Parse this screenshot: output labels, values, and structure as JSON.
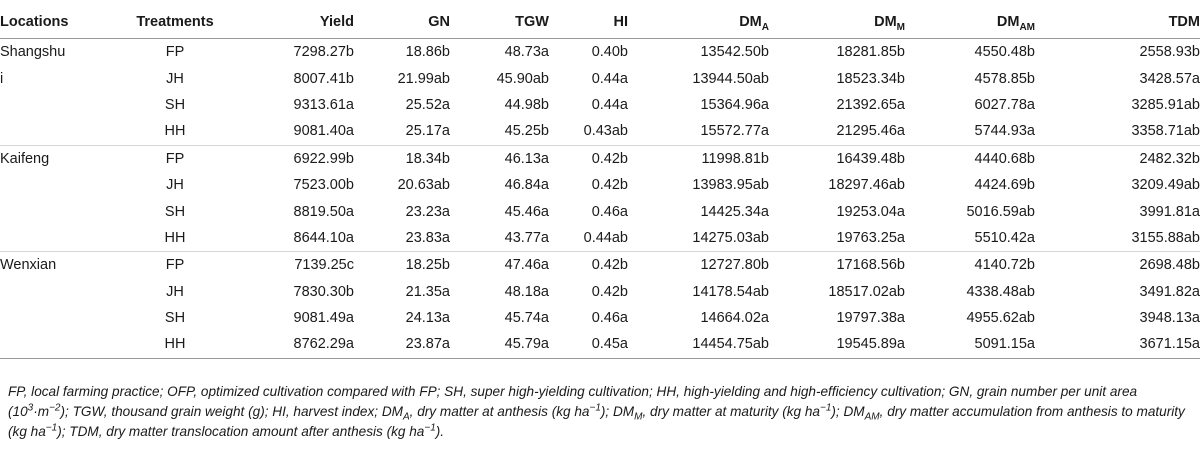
{
  "table": {
    "headers": {
      "location": "Locations",
      "treatment": "Treatments",
      "yield": "Yield",
      "gn": "GN",
      "tgw": "TGW",
      "hi": "HI",
      "dma_base": "DM",
      "dma_sub": "A",
      "dmm_base": "DM",
      "dmm_sub": "M",
      "dmam_base": "DM",
      "dmam_sub": "AM",
      "tdm": "TDM"
    },
    "rows": [
      {
        "location": "Shangshu",
        "treatment": "FP",
        "yield": "7298.27b",
        "gn": "18.86b",
        "tgw": "48.73a",
        "hi": "0.40b",
        "dma": "13542.50b",
        "dmm": "18281.85b",
        "dmam": "4550.48b",
        "tdm": "2558.93b"
      },
      {
        "location": "i",
        "treatment": "JH",
        "yield": "8007.41b",
        "gn": "21.99ab",
        "tgw": "45.90ab",
        "hi": "0.44a",
        "dma": "13944.50ab",
        "dmm": "18523.34b",
        "dmam": "4578.85b",
        "tdm": "3428.57a"
      },
      {
        "location": "",
        "treatment": "SH",
        "yield": "9313.61a",
        "gn": "25.52a",
        "tgw": "44.98b",
        "hi": "0.44a",
        "dma": "15364.96a",
        "dmm": "21392.65a",
        "dmam": "6027.78a",
        "tdm": "3285.91ab"
      },
      {
        "location": "",
        "treatment": "HH",
        "yield": "9081.40a",
        "gn": "25.17a",
        "tgw": "45.25b",
        "hi": "0.43ab",
        "dma": "15572.77a",
        "dmm": "21295.46a",
        "dmam": "5744.93a",
        "tdm": "3358.71ab"
      },
      {
        "location": "Kaifeng",
        "treatment": "FP",
        "yield": "6922.99b",
        "gn": "18.34b",
        "tgw": "46.13a",
        "hi": "0.42b",
        "dma": "11998.81b",
        "dmm": "16439.48b",
        "dmam": "4440.68b",
        "tdm": "2482.32b"
      },
      {
        "location": "",
        "treatment": "JH",
        "yield": "7523.00b",
        "gn": "20.63ab",
        "tgw": "46.84a",
        "hi": "0.42b",
        "dma": "13983.95ab",
        "dmm": "18297.46ab",
        "dmam": "4424.69b",
        "tdm": "3209.49ab"
      },
      {
        "location": "",
        "treatment": "SH",
        "yield": "8819.50a",
        "gn": "23.23a",
        "tgw": "45.46a",
        "hi": "0.46a",
        "dma": "14425.34a",
        "dmm": "19253.04a",
        "dmam": "5016.59ab",
        "tdm": "3991.81a"
      },
      {
        "location": "",
        "treatment": "HH",
        "yield": "8644.10a",
        "gn": "23.83a",
        "tgw": "43.77a",
        "hi": "0.44ab",
        "dma": "14275.03ab",
        "dmm": "19763.25a",
        "dmam": "5510.42a",
        "tdm": "3155.88ab"
      },
      {
        "location": "Wenxian",
        "treatment": "FP",
        "yield": "7139.25c",
        "gn": "18.25b",
        "tgw": "47.46a",
        "hi": "0.42b",
        "dma": "12727.80b",
        "dmm": "17168.56b",
        "dmam": "4140.72b",
        "tdm": "2698.48b"
      },
      {
        "location": "",
        "treatment": "JH",
        "yield": "7830.30b",
        "gn": "21.35a",
        "tgw": "48.18a",
        "hi": "0.42b",
        "dma": "14178.54ab",
        "dmm": "18517.02ab",
        "dmam": "4338.48ab",
        "tdm": "3491.82a"
      },
      {
        "location": "",
        "treatment": "SH",
        "yield": "9081.49a",
        "gn": "24.13a",
        "tgw": "45.74a",
        "hi": "0.46a",
        "dma": "14664.02a",
        "dmm": "19797.38a",
        "dmam": "4955.62ab",
        "tdm": "3948.13a"
      },
      {
        "location": "",
        "treatment": "HH",
        "yield": "8762.29a",
        "gn": "23.87a",
        "tgw": "45.79a",
        "hi": "0.45a",
        "dma": "14454.75ab",
        "dmm": "19545.89a",
        "dmam": "5091.15a",
        "tdm": "3671.15a"
      }
    ]
  },
  "footnote": {
    "p1": "FP, local farming practice; OFP, optimized cultivation compared with FP; SH, super high-yielding cultivation; HH, high-yielding and high-efficiency cultivation; GN, grain number per unit area (10",
    "p1_sup": "3",
    "p2": "·m",
    "p2_sup": "−2",
    "p3": "); TGW, thousand grain weight (g); HI, harvest index; DM",
    "p3_sub": "A",
    "p4": ", dry matter at anthesis (kg ha",
    "p4_sup": "−1",
    "p5": "); DM",
    "p5_sub": "M",
    "p6": ", dry matter at maturity (kg ha",
    "p6_sup": "−1",
    "p7": "); DM",
    "p7_sub": "AM",
    "p8": ", dry matter accumulation from anthesis to maturity (kg ha",
    "p8_sup": "−1",
    "p9": "); TDM, dry matter translocation amount after anthesis (kg ha",
    "p9_sup": "−1",
    "p10": ")."
  }
}
